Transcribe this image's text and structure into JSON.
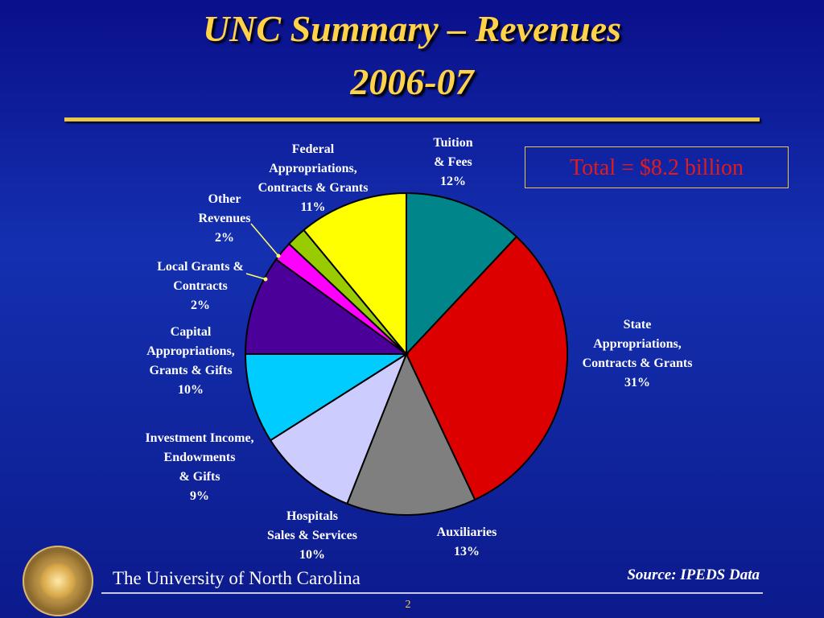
{
  "slide": {
    "title_line1": "UNC Summary – Revenues",
    "title_line2": "2006-07",
    "total_label": "Total = $8.2 billion",
    "footer": "The University of North Carolina",
    "source": "Source:  IPEDS Data",
    "page_number": "2"
  },
  "colors": {
    "title": "#ffd24a",
    "background": "#0c1a8c"
  },
  "chart_data": {
    "type": "pie",
    "title": "UNC Summary – Revenues 2006-07",
    "unit": "%",
    "start": "12 o'clock, clockwise",
    "slices": [
      {
        "label": [
          "Tuition",
          "& Fees",
          "12%"
        ],
        "value": 12,
        "color": "#00858a"
      },
      {
        "label": [
          "State",
          "Appropriations,",
          "Contracts & Grants",
          "31%"
        ],
        "value": 31,
        "color": "#dd0000"
      },
      {
        "label": [
          "Auxiliaries",
          "13%"
        ],
        "value": 13,
        "color": "#7f7f7f"
      },
      {
        "label": [
          "Hospitals",
          "Sales & Services",
          "10%"
        ],
        "value": 10,
        "color": "#ccccff"
      },
      {
        "label": [
          "Investment Income,",
          "Endowments",
          "& Gifts",
          "9%"
        ],
        "value": 9,
        "color": "#00ccff"
      },
      {
        "label": [
          "Capital",
          "Appropriations,",
          "Grants & Gifts",
          "10%"
        ],
        "value": 10,
        "color": "#4b0099"
      },
      {
        "label": [
          "Local Grants &",
          "Contracts",
          "2%"
        ],
        "value": 2,
        "color": "#ff00ff"
      },
      {
        "label": [
          "Other",
          "Revenues",
          "2%"
        ],
        "value": 2,
        "color": "#99cc00"
      },
      {
        "label": [
          "Federal",
          "Appropriations,",
          "Contracts & Grants",
          "11%"
        ],
        "value": 11,
        "color": "#ffff00"
      }
    ]
  }
}
